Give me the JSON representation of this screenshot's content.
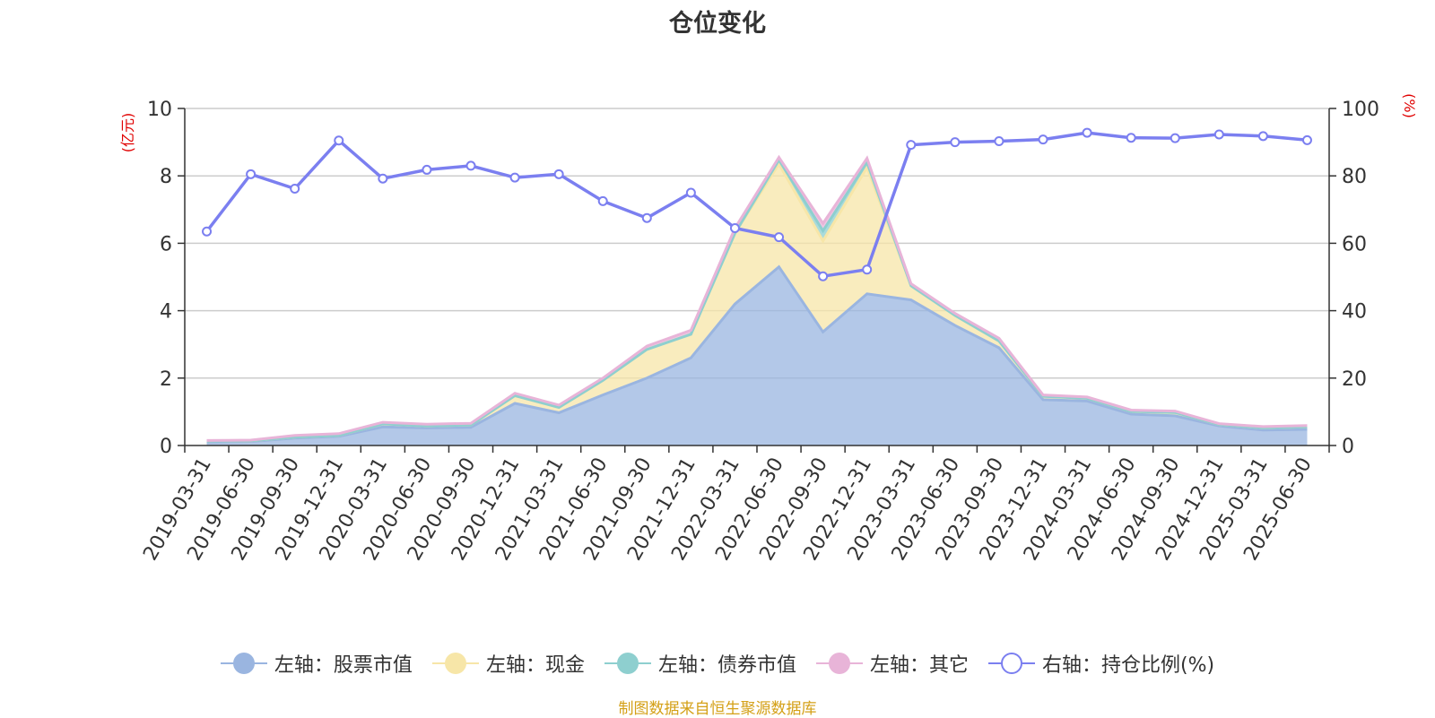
{
  "chart_data": {
    "type": "area",
    "title": "仓位变化",
    "left_axis": {
      "unit": "(亿元)",
      "ylim": [
        0,
        10
      ],
      "ticks": [
        0,
        2,
        4,
        6,
        8,
        10
      ]
    },
    "right_axis": {
      "unit": "(%)",
      "ylim": [
        0,
        100
      ],
      "ticks": [
        0,
        20,
        40,
        60,
        80,
        100
      ]
    },
    "categories": [
      "2019-03-31",
      "2019-06-30",
      "2019-09-30",
      "2019-12-31",
      "2020-03-31",
      "2020-06-30",
      "2020-09-30",
      "2020-12-31",
      "2021-03-31",
      "2021-06-30",
      "2021-09-30",
      "2021-12-31",
      "2022-03-31",
      "2022-06-30",
      "2022-09-30",
      "2022-12-31",
      "2023-03-31",
      "2023-06-30",
      "2023-09-30",
      "2023-12-31",
      "2024-03-31",
      "2024-06-30",
      "2024-09-30",
      "2024-12-31",
      "2025-03-31",
      "2025-06-30"
    ],
    "series": [
      {
        "name": "左轴：股票市值",
        "axis": "left",
        "color": "#9ab5e0",
        "values": [
          0.1,
          0.12,
          0.22,
          0.27,
          0.55,
          0.52,
          0.54,
          1.25,
          0.97,
          1.5,
          2.0,
          2.6,
          4.2,
          5.3,
          3.37,
          4.5,
          4.32,
          3.56,
          2.9,
          1.36,
          1.32,
          0.93,
          0.88,
          0.58,
          0.46,
          0.48
        ]
      },
      {
        "name": "左轴：现金",
        "axis": "left",
        "color": "#f7e6a8",
        "values": [
          0.03,
          0.02,
          0.03,
          0.03,
          0.09,
          0.06,
          0.07,
          0.23,
          0.16,
          0.43,
          0.85,
          0.7,
          2.1,
          3.05,
          2.7,
          3.75,
          0.42,
          0.3,
          0.2,
          0.1,
          0.08,
          0.08,
          0.1,
          0.04,
          0.06,
          0.07
        ]
      },
      {
        "name": "左轴：债券市值",
        "axis": "left",
        "color": "#8ecfcf",
        "values": [
          0,
          0,
          0,
          0,
          0,
          0,
          0,
          0,
          0,
          0,
          0,
          0,
          0,
          0.12,
          0.3,
          0.15,
          0,
          0,
          0,
          0,
          0,
          0,
          0,
          0,
          0,
          0
        ]
      },
      {
        "name": "左轴：其它",
        "axis": "left",
        "color": "#e8b4d8",
        "values": [
          0.02,
          0.02,
          0.05,
          0.05,
          0.05,
          0.05,
          0.05,
          0.07,
          0.07,
          0.07,
          0.1,
          0.12,
          0.15,
          0.08,
          0.22,
          0.12,
          0.06,
          0.06,
          0.08,
          0.04,
          0.04,
          0.04,
          0.04,
          0.03,
          0.04,
          0.04
        ]
      },
      {
        "name": "右轴：持仓比例(%)",
        "axis": "right",
        "type": "line",
        "color": "#7b7ff0",
        "values": [
          63.5,
          80.5,
          76.2,
          90.5,
          79.2,
          81.8,
          83.0,
          79.5,
          80.5,
          72.5,
          67.5,
          75.0,
          64.5,
          61.8,
          50.2,
          52.2,
          89.2,
          90.0,
          90.3,
          90.8,
          92.8,
          91.3,
          91.2,
          92.3,
          91.8,
          90.6
        ]
      }
    ],
    "grid": true,
    "legend_position": "bottom-center"
  },
  "source_note": "制图数据来自恒生聚源数据库"
}
